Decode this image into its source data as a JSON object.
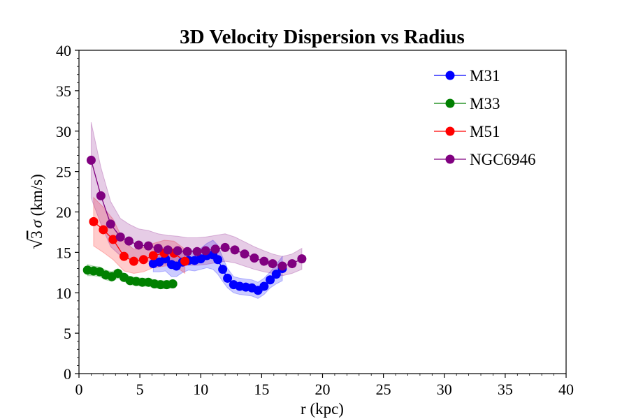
{
  "chart_data": {
    "type": "line",
    "title": "3D Velocity Dispersion vs Radius",
    "xlabel": "r (kpc)",
    "ylabel": "√3 σ (km/s)",
    "ylabel_parts": {
      "root": "√",
      "body": "3",
      "sigma": "σ",
      "unit": " (km/s)"
    },
    "xlim": [
      0,
      40
    ],
    "ylim": [
      0,
      40
    ],
    "xticks": [
      0,
      5,
      10,
      15,
      20,
      25,
      30,
      35,
      40
    ],
    "yticks": [
      0,
      5,
      10,
      15,
      20,
      25,
      30,
      35,
      40
    ],
    "grid": false,
    "legend_position": "top-right",
    "series": [
      {
        "name": "M31",
        "color": "#0000ff",
        "x": [
          6.1,
          6.6,
          7.1,
          7.6,
          8.0,
          8.5,
          9.0,
          9.5,
          10.0,
          10.5,
          11.0,
          11.4,
          11.8,
          12.2,
          12.7,
          13.2,
          13.7,
          14.2,
          14.7,
          15.2,
          15.7,
          16.2,
          16.7
        ],
        "y": [
          13.6,
          13.8,
          14.2,
          13.5,
          13.3,
          13.8,
          14.0,
          14.0,
          14.2,
          14.6,
          14.7,
          14.1,
          12.9,
          11.8,
          11.0,
          10.8,
          10.7,
          10.6,
          10.3,
          10.8,
          11.6,
          12.3,
          13.0
        ],
        "err": [
          1.0,
          1.2,
          1.5,
          1.5,
          1.3,
          1.3,
          1.2,
          1.3,
          1.3,
          1.5,
          1.8,
          1.8,
          1.5,
          1.2,
          1.0,
          1.0,
          1.0,
          1.0,
          1.0,
          1.0,
          1.0,
          1.2,
          1.5
        ]
      },
      {
        "name": "M33",
        "color": "#008000",
        "x": [
          0.7,
          1.2,
          1.7,
          2.2,
          2.7,
          3.2,
          3.7,
          4.2,
          4.7,
          5.2,
          5.7,
          6.2,
          6.7,
          7.2,
          7.7
        ],
        "y": [
          12.8,
          12.7,
          12.6,
          12.2,
          12.0,
          12.4,
          11.9,
          11.5,
          11.4,
          11.3,
          11.3,
          11.1,
          11.0,
          11.0,
          11.1
        ],
        "err": [
          0.7,
          0.6,
          0.6,
          0.6,
          0.6,
          0.6,
          0.5,
          0.5,
          0.5,
          0.5,
          0.5,
          0.5,
          0.5,
          0.5,
          0.5
        ]
      },
      {
        "name": "M51",
        "color": "#ff0000",
        "x": [
          1.2,
          2.0,
          2.8,
          3.7,
          4.5,
          5.3,
          6.1,
          7.0,
          7.8,
          8.7
        ],
        "y": [
          18.8,
          17.8,
          16.6,
          14.5,
          13.9,
          14.1,
          14.6,
          14.9,
          14.9,
          13.9
        ],
        "err": [
          3.0,
          2.8,
          2.5,
          1.8,
          1.5,
          1.5,
          1.5,
          1.6,
          1.5,
          1.5
        ]
      },
      {
        "name": "NGC6946",
        "color": "#800080",
        "x": [
          1.0,
          1.8,
          2.6,
          3.4,
          4.1,
          4.9,
          5.7,
          6.5,
          7.3,
          8.1,
          8.9,
          9.7,
          10.4,
          11.2,
          12.0,
          12.8,
          13.6,
          14.4,
          15.2,
          15.9,
          16.7,
          17.5,
          18.3
        ],
        "y": [
          26.4,
          22.0,
          18.5,
          16.9,
          16.4,
          15.9,
          15.8,
          15.5,
          15.3,
          15.2,
          15.1,
          15.1,
          15.2,
          15.4,
          15.6,
          15.3,
          14.8,
          14.3,
          13.9,
          13.6,
          13.3,
          13.6,
          14.2
        ],
        "err": [
          4.7,
          3.5,
          2.8,
          2.3,
          2.1,
          2.0,
          1.9,
          1.8,
          1.8,
          1.8,
          1.7,
          1.7,
          1.7,
          1.7,
          1.7,
          1.6,
          1.5,
          1.4,
          1.3,
          1.2,
          1.2,
          1.2,
          1.3
        ]
      }
    ]
  }
}
